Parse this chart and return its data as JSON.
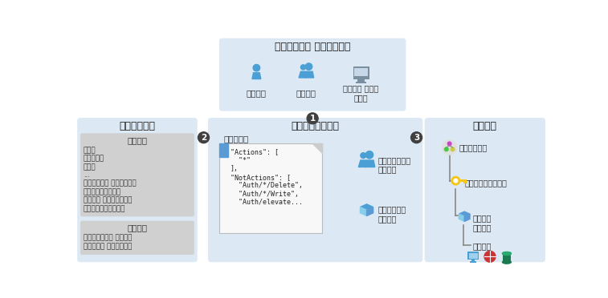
{
  "bg_color": "#ffffff",
  "light_blue": "#dce9f5",
  "gray_bg": "#d0d0d0",
  "title_color": "#1a1a1a",
  "text_color": "#333333",
  "arrow_color": "#555555",
  "user_color": "#4a9fd4",
  "security_title": "セキュリティ プリンシパル",
  "security_items": [
    "ユーザー",
    "グループ",
    "サービス プリン\nシパル"
  ],
  "role_def_title": "ロールの定義",
  "builtin_title": "組み込み",
  "builtin_items": [
    "所有者",
    "共同作成者",
    "閲覧者",
    "...",
    "バックアップ オペレーター",
    "セキュリティ閲覧者",
    "ユーザー アクセス管理者",
    "仮想マシン共同作成者"
  ],
  "custom_title": "カスタム",
  "custom_items": [
    "閲覧者サポート チケット",
    "仮想マシン オペレーター"
  ],
  "role_assign_title": "ロールの割り当て",
  "role_assign_subtitle": "共同作成者",
  "code_text": "\"Actions\": [\n  \"*\"\n],\n\"NotActions\": [\n  \"Auth/*/Delete\",\n  \"Auth/*/Write\",\n  \"Auth/elevate...",
  "scope_title": "スコープ",
  "scope_items": [
    "管理グループ",
    "サブスクリプション",
    "リソース\nグループ",
    "リソース"
  ],
  "group_labels": [
    "マーケティング\nグループ",
    "販売リソース\nグループ"
  ],
  "arrow_label_1": "1",
  "arrow_label_2": "2",
  "arrow_label_3": "3"
}
